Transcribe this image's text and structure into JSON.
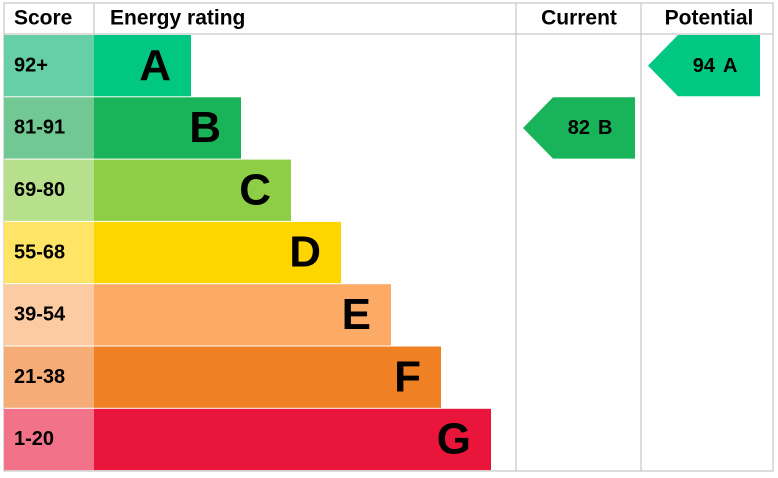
{
  "header": {
    "score": "Score",
    "rating": "Energy rating",
    "current": "Current",
    "potential": "Potential"
  },
  "bands": [
    {
      "score": "92+",
      "letter": "A",
      "color": "#00c781",
      "light": "#66cfa8"
    },
    {
      "score": "81-91",
      "letter": "B",
      "color": "#19b459",
      "light": "#72c892"
    },
    {
      "score": "69-80",
      "letter": "C",
      "color": "#8dce46",
      "light": "#b7e08c"
    },
    {
      "score": "55-68",
      "letter": "D",
      "color": "#ffd500",
      "light": "#ffe466"
    },
    {
      "score": "39-54",
      "letter": "E",
      "color": "#fcaa65",
      "light": "#fdcba2"
    },
    {
      "score": "21-38",
      "letter": "F",
      "color": "#ef8023",
      "light": "#f5ac76"
    },
    {
      "score": "1-20",
      "letter": "G",
      "color": "#e9153b",
      "light": "#f27389"
    }
  ],
  "current": {
    "score": 82,
    "rating": "B"
  },
  "potential": {
    "score": 94,
    "rating": "A"
  }
}
